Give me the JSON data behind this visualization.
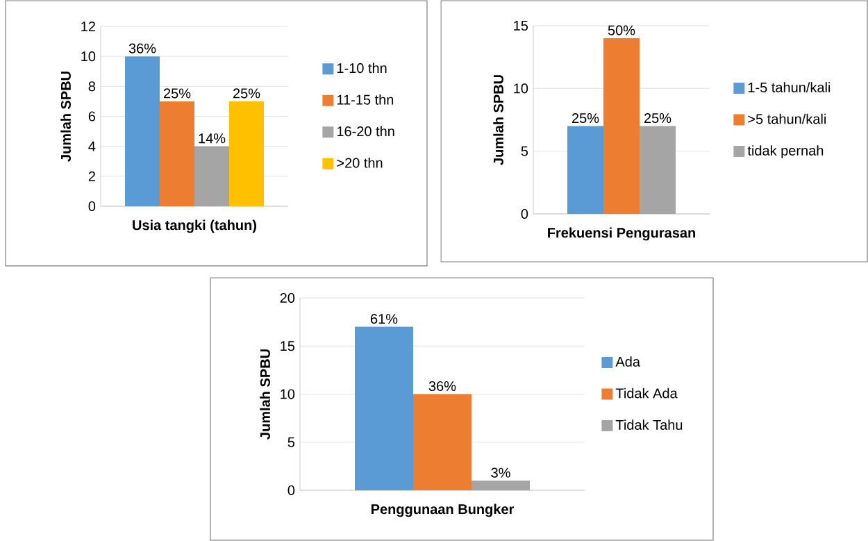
{
  "chart_data": [
    {
      "type": "bar",
      "xlabel": "Usia tangki (tahun)",
      "ylabel": "Jumlah SPBU",
      "categories": [
        null
      ],
      "ylim": [
        0,
        12
      ],
      "yticks": [
        0,
        2,
        4,
        6,
        8,
        10,
        12
      ],
      "grid": "y",
      "legend": "right",
      "series": [
        {
          "name": "1-10 thn",
          "color": "#5b9bd5",
          "values": [
            10
          ]
        },
        {
          "name": "11-15 thn",
          "color": "#ed7d31",
          "values": [
            7
          ]
        },
        {
          "name": "16-20 thn",
          "color": "#a5a5a5",
          "values": [
            4
          ]
        },
        {
          "name": ">20 thn",
          "color": "#ffc000",
          "values": [
            7
          ]
        }
      ],
      "annotations": [
        {
          "text": "36%",
          "y": 10
        },
        {
          "text": "25%",
          "y": 7
        },
        {
          "text": "14%",
          "y": 4
        },
        {
          "text": "25%",
          "y": 7
        }
      ]
    },
    {
      "type": "bar",
      "xlabel": "Frekuensi Pengurasan",
      "ylabel": "Jumlah SPBU",
      "categories": [
        null
      ],
      "ylim": [
        0,
        15
      ],
      "yticks": [
        0,
        5,
        10,
        15
      ],
      "grid": "y",
      "legend": "right",
      "series": [
        {
          "name": "1-5 tahun/kali",
          "color": "#5b9bd5",
          "values": [
            7
          ]
        },
        {
          "name": ">5 tahun/kali",
          "color": "#ed7d31",
          "values": [
            14
          ]
        },
        {
          "name": "tidak pernah",
          "color": "#a5a5a5",
          "values": [
            7
          ]
        }
      ],
      "annotations": [
        {
          "text": "25%",
          "y": 7
        },
        {
          "text": "50%",
          "y": 14
        },
        {
          "text": "25%",
          "y": 7
        }
      ]
    },
    {
      "type": "bar",
      "xlabel": "Penggunaan Bungker",
      "ylabel": "Jumlah SPBU",
      "categories": [
        null
      ],
      "ylim": [
        0,
        20
      ],
      "yticks": [
        0,
        5,
        10,
        15,
        20
      ],
      "grid": "y",
      "legend": "right",
      "series": [
        {
          "name": "Ada",
          "color": "#5b9bd5",
          "values": [
            17
          ]
        },
        {
          "name": "Tidak Ada",
          "color": "#ed7d31",
          "values": [
            10
          ]
        },
        {
          "name": "Tidak Tahu",
          "color": "#a5a5a5",
          "values": [
            1
          ]
        }
      ],
      "annotations": [
        {
          "text": "61%",
          "y": 17
        },
        {
          "text": "36%",
          "y": 10
        },
        {
          "text": "3%",
          "y": 1
        }
      ]
    }
  ]
}
